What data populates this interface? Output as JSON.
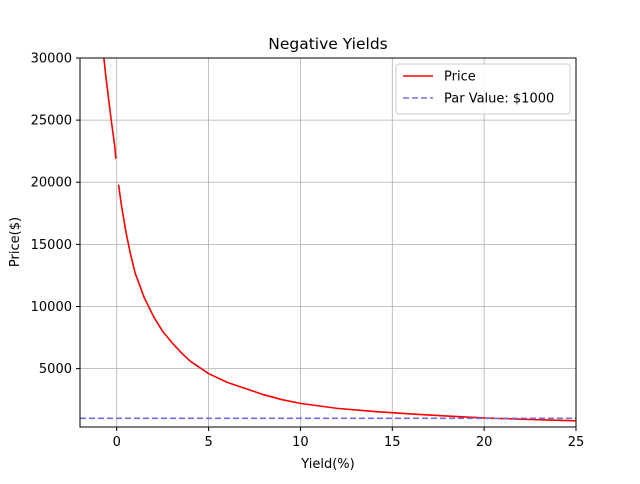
{
  "chart_data": {
    "type": "line",
    "title": "Negative Yields",
    "xlabel": "Yield(%)",
    "ylabel": "Price($)",
    "xlim": [
      -2,
      25
    ],
    "ylim": [
      300,
      30000
    ],
    "xticks": [
      0,
      5,
      10,
      15,
      20,
      25
    ],
    "yticks": [
      5000,
      10000,
      15000,
      20000,
      25000,
      30000
    ],
    "grid": true,
    "legend_position": "top-right",
    "series": [
      {
        "name": "Price",
        "style": "solid",
        "color": "#ff0000",
        "segments": [
          {
            "x": [
              -0.7,
              -0.6,
              -0.5,
              -0.4,
              -0.3,
              -0.2,
              -0.1,
              -0.05
            ],
            "y": [
              30000,
              28600,
              27400,
              26200,
              25000,
              23900,
              22800,
              21900
            ]
          },
          {
            "x": [
              0.1,
              0.25,
              0.5,
              0.75,
              1,
              1.5,
              2,
              2.5,
              3,
              3.5,
              4,
              5,
              6,
              7,
              8,
              9,
              10,
              12,
              14,
              16,
              18,
              20,
              22,
              25
            ],
            "y": [
              19800,
              18200,
              16000,
              14200,
              12700,
              10700,
              9200,
              8000,
              7100,
              6300,
              5600,
              4600,
              3900,
              3400,
              2900,
              2500,
              2200,
              1800,
              1550,
              1350,
              1180,
              1030,
              930,
              800
            ]
          }
        ]
      },
      {
        "name": "Par Value: $1000",
        "style": "dashed",
        "color": "#7070e0",
        "segments": [
          {
            "x": [
              -2,
              25
            ],
            "y": [
              1000,
              1000
            ]
          }
        ]
      }
    ]
  }
}
